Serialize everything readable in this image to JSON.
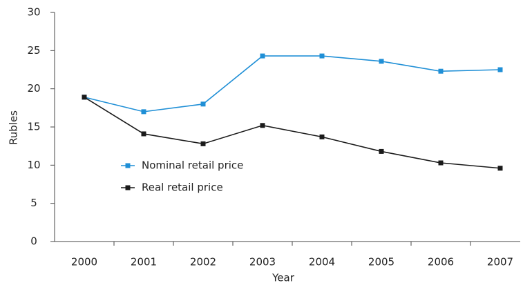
{
  "chart_data": {
    "type": "line",
    "xlabel": "Year",
    "ylabel": "Rubles",
    "categories": [
      "2000",
      "2001",
      "2002",
      "2003",
      "2004",
      "2005",
      "2006",
      "2007"
    ],
    "series": [
      {
        "name": "Nominal retail price",
        "color": "#1f8fd6",
        "values": [
          18.9,
          17.0,
          18.0,
          24.3,
          24.3,
          23.6,
          22.3,
          22.5
        ]
      },
      {
        "name": "Real retail price",
        "color": "#1a1a1a",
        "values": [
          18.9,
          14.1,
          12.8,
          15.2,
          13.7,
          11.8,
          10.3,
          9.6
        ]
      }
    ],
    "ylim": [
      0,
      30
    ],
    "yticks": [
      0,
      5,
      10,
      15,
      20,
      25,
      30
    ],
    "legend": "center-left"
  }
}
